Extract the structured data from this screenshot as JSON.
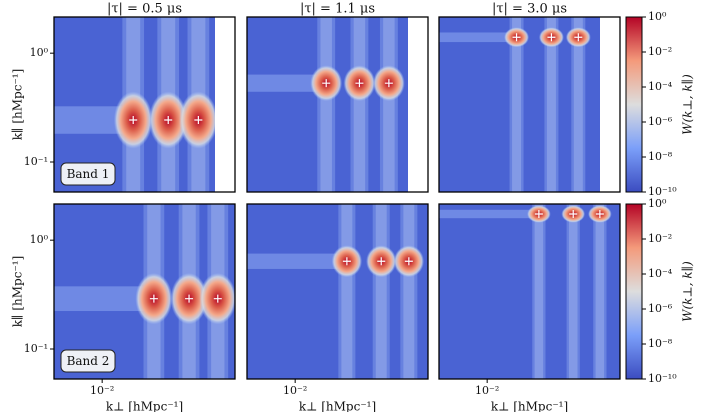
{
  "chart_data": [
    {
      "type": "heatmap",
      "title": "|τ| = 0.5 μs",
      "ylabel": "k∥ [hMpc⁻¹]",
      "annotation": "Band 1",
      "xscale": "log",
      "yscale": "log",
      "xlim": [
        0.0055,
        0.052
      ],
      "ylim": [
        0.053,
        2.15
      ],
      "yticks": [
        {
          "value": 1,
          "label": "10⁰"
        },
        {
          "value": 0.1,
          "label": "10⁻¹"
        }
      ],
      "x": [
        0.0147,
        0.0227,
        0.033
      ],
      "values": [
        0.243,
        0.243,
        0.243
      ],
      "marker_color": "#ffffff"
    },
    {
      "type": "heatmap",
      "title": "|τ| = 1.1 μs",
      "xscale": "log",
      "yscale": "log",
      "xlim": [
        0.0055,
        0.052
      ],
      "ylim": [
        0.053,
        2.15
      ],
      "x": [
        0.0147,
        0.0222,
        0.032
      ],
      "values": [
        0.53,
        0.53,
        0.53
      ],
      "marker_color": "#ffffff"
    },
    {
      "type": "heatmap",
      "title": "|τ| = 3.0 μs",
      "xscale": "log",
      "yscale": "log",
      "xlim": [
        0.0055,
        0.052
      ],
      "ylim": [
        0.053,
        2.15
      ],
      "x": [
        0.0144,
        0.0222,
        0.031
      ],
      "values": [
        1.4,
        1.4,
        1.4
      ],
      "marker_color": "#ffffff",
      "colorbar": {
        "label": "W(k⊥, k∥)",
        "scale": "log",
        "lim": [
          1e-10,
          1
        ],
        "ticks": [
          {
            "value": 1,
            "label": "10⁰"
          },
          {
            "value": 0.01,
            "label": "10⁻²"
          },
          {
            "value": 0.0001,
            "label": "10⁻⁴"
          },
          {
            "value": 1e-06,
            "label": "10⁻⁶"
          },
          {
            "value": 1e-08,
            "label": "10⁻⁸"
          },
          {
            "value": 1e-10,
            "label": "10⁻¹⁰"
          }
        ]
      }
    },
    {
      "type": "heatmap",
      "ylabel": "k∥ [hMpc⁻¹]",
      "xlabel": "k⊥ [hMpc⁻¹]",
      "annotation": "Band 2",
      "xscale": "log",
      "yscale": "log",
      "xlim": [
        0.0055,
        0.052
      ],
      "ylim": [
        0.053,
        2.15
      ],
      "xticks": [
        {
          "value": 0.01,
          "label": "10⁻²"
        }
      ],
      "yticks": [
        {
          "value": 1,
          "label": "10⁰"
        },
        {
          "value": 0.1,
          "label": "10⁻¹"
        }
      ],
      "x": [
        0.019,
        0.0294,
        0.042
      ],
      "values": [
        0.29,
        0.29,
        0.29
      ],
      "marker_color": "#ffffff"
    },
    {
      "type": "heatmap",
      "xlabel": "k⊥ [hMpc⁻¹]",
      "xscale": "log",
      "yscale": "log",
      "xlim": [
        0.0055,
        0.052
      ],
      "ylim": [
        0.053,
        2.15
      ],
      "xticks": [
        {
          "value": 0.01,
          "label": "10⁻²"
        }
      ],
      "x": [
        0.019,
        0.0291,
        0.041
      ],
      "values": [
        0.64,
        0.64,
        0.64
      ],
      "marker_color": "#ffffff"
    },
    {
      "type": "heatmap",
      "xlabel": "k⊥ [hMpc⁻¹]",
      "xscale": "log",
      "yscale": "log",
      "xlim": [
        0.0055,
        0.052
      ],
      "ylim": [
        0.053,
        2.15
      ],
      "xticks": [
        {
          "value": 0.01,
          "label": "10⁻²"
        }
      ],
      "x": [
        0.019,
        0.0291,
        0.0405
      ],
      "values": [
        1.74,
        1.74,
        1.74
      ],
      "marker_color": "#ffffff",
      "colorbar": {
        "label": "W(k⊥, k∥)",
        "scale": "log",
        "lim": [
          1e-10,
          1
        ],
        "ticks": [
          {
            "value": 1,
            "label": "10⁰"
          },
          {
            "value": 0.01,
            "label": "10⁻²"
          },
          {
            "value": 0.0001,
            "label": "10⁻⁴"
          },
          {
            "value": 1e-06,
            "label": "10⁻⁶"
          },
          {
            "value": 1e-08,
            "label": "10⁻⁸"
          },
          {
            "value": 1e-10,
            "label": "10⁻¹⁰"
          }
        ]
      }
    }
  ]
}
